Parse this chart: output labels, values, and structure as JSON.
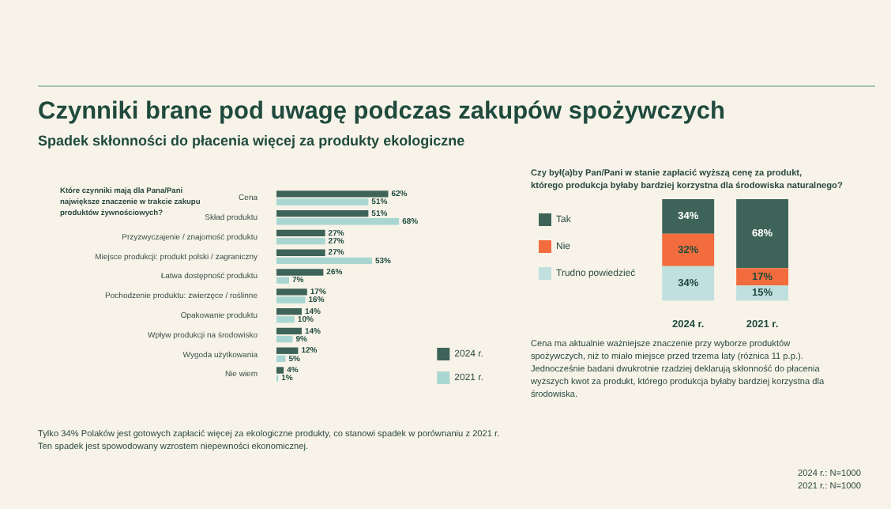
{
  "chart_data": [
    {
      "type": "bar",
      "orientation": "horizontal",
      "title": "Czynniki brane pod uwagę podczas zakupów spożywczych",
      "subtitle": "Spadek skłonności do płacenia więcej za produkty ekologiczne",
      "categories": [
        "Cena",
        "Skład produktu",
        "Przyzwyczajenie / znajomość produktu",
        "Miejsce produkcji: produkt polski / zagraniczny",
        "Łatwa dostępność produktu",
        "Pochodzenie produktu: zwierzęce / roślinne",
        "Opakowanie produktu",
        "Wpływ produkcji na środowisko",
        "Wygoda użytkowania",
        "Nie wiem"
      ],
      "series": [
        {
          "name": "2024 r.",
          "color": "#3e6358",
          "values": [
            62,
            51,
            27,
            27,
            26,
            17,
            14,
            14,
            12,
            4
          ],
          "value_labels": [
            "62%",
            "51%",
            "27%",
            "27%",
            "26%",
            "17%",
            "14%",
            "14%",
            "12%",
            "4%"
          ]
        },
        {
          "name": "2021 r.",
          "color": "#a9d6d1",
          "values": [
            51,
            68,
            27,
            53,
            7,
            16,
            10,
            9,
            5,
            1
          ],
          "value_labels": [
            "51%",
            "68%",
            "27%",
            "53%",
            "7%",
            "16%",
            "10%",
            "9%",
            "5%",
            "1%"
          ]
        }
      ],
      "legend": "bottom right",
      "annotations": [
        "Które czynniki mają dla Pana/Pani największe znaczenie w trakcie zakupu produktów żywnościowych?",
        "Tylko 34% Polaków jest gotowych zapłacić więcej za ekologiczne produkty, co stanowi spadek w porównaniu z 2021 r.\nTen spadek jest spowodowany wzrostem niepewności ekonomicznej."
      ]
    },
    {
      "type": "bar",
      "stacked": true,
      "title": "Czy był(a)by Pan/Pani w stanie zapłacić wyższą cenę za produkt,\nktórego produkcja byłaby bardziej korzystna dla środowiska naturalnego?",
      "categories": [
        "2024 r.",
        "2021 r."
      ],
      "series": [
        {
          "name": "Trudno powiedzieć",
          "color": "#bfe0de",
          "values": [
            34,
            15
          ],
          "value_labels": [
            "34%",
            "15%"
          ]
        },
        {
          "name": "Nie",
          "color": "#f26c3d",
          "values": [
            32,
            17
          ],
          "value_labels": [
            "32%",
            "17%"
          ]
        },
        {
          "name": "Tak",
          "color": "#3e6358",
          "values": [
            34,
            68
          ],
          "value_labels": [
            "34%",
            "68%"
          ]
        }
      ],
      "legend": "top left",
      "annotations": [
        "Cena ma aktualnie ważniejsze znaczenie przy wyborze produktów spożywczych, niż to miało miejsce przed trzema laty (różnica 11 p.p.). Jednocześnie badani dwukrotnie rzadziej deklarują skłonność do płacenia wyższych kwot za produkt, którego produkcja byłaby bardziej korzystna dla środowiska.",
        "2024 r.: N=1000\n2021 r.: N=1000"
      ]
    }
  ]
}
